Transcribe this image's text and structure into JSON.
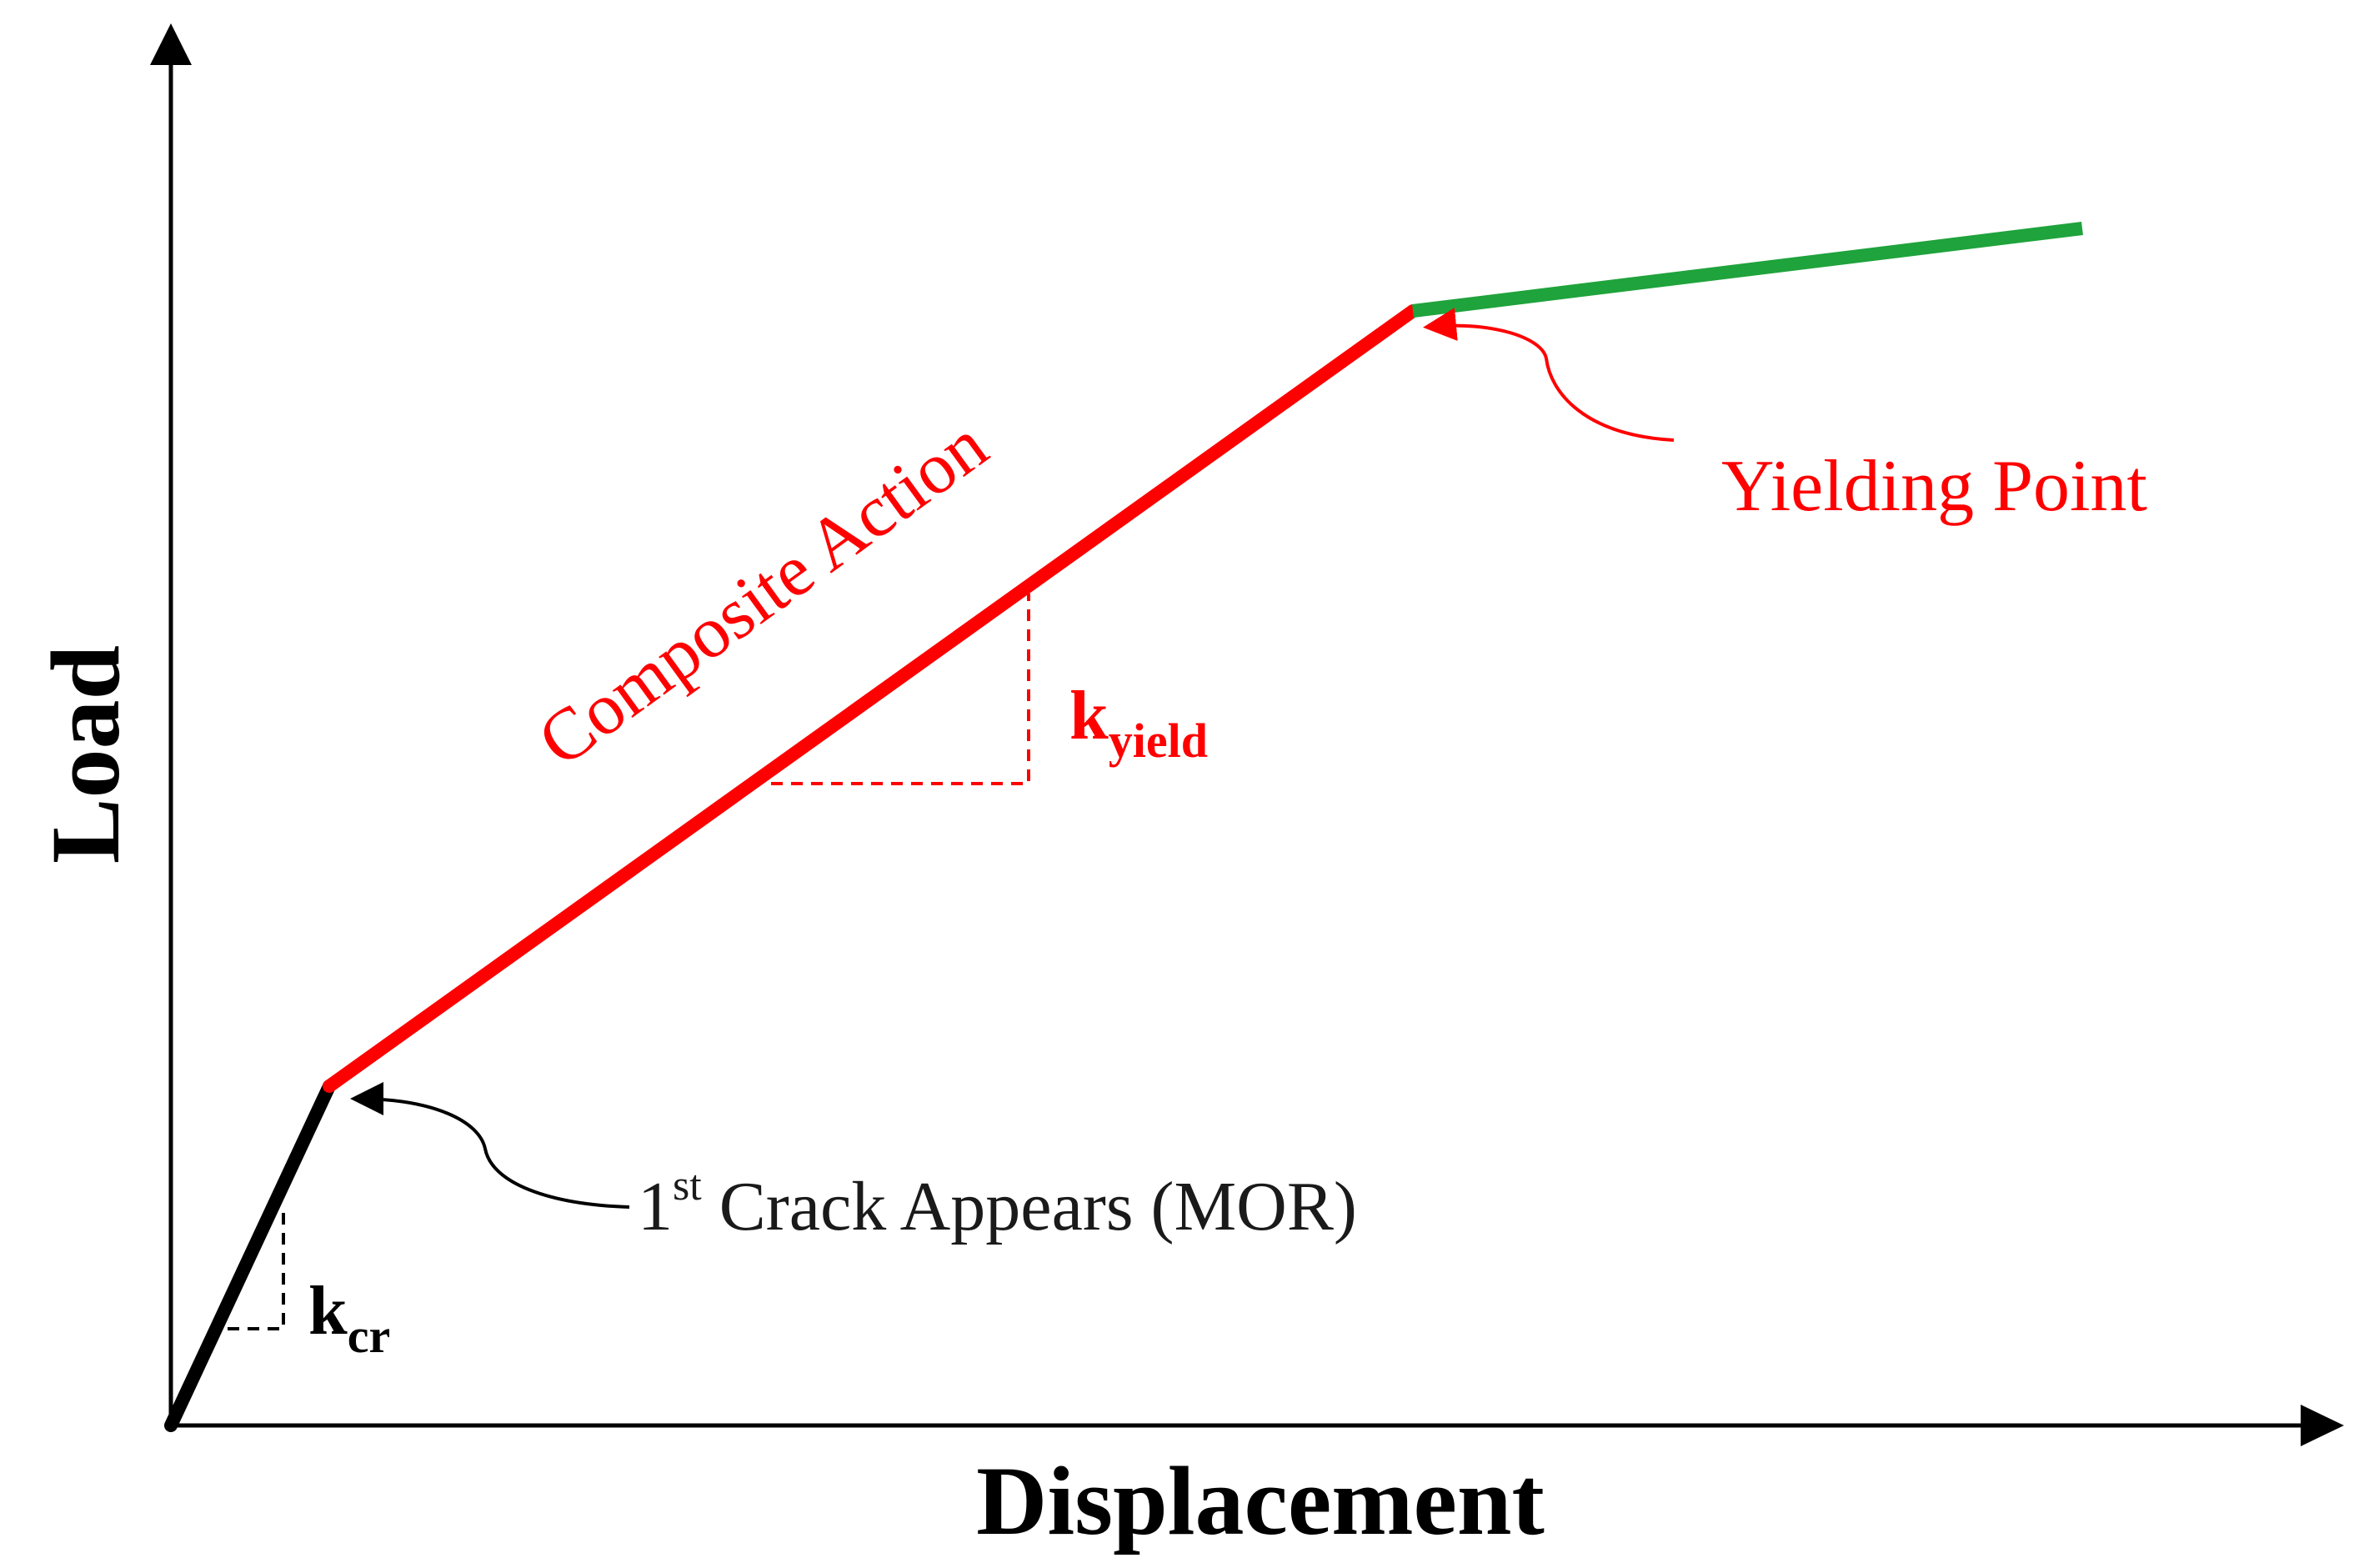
{
  "axes": {
    "x_label": "Displacement",
    "y_label": "Load"
  },
  "labels": {
    "composite_action": "Composite Action",
    "yielding_point": "Yielding Point",
    "first_crack_prefix": "1",
    "first_crack_superscript": "st",
    "first_crack_rest": " Crack Appears (MOR)",
    "k_cr_base": "k",
    "k_cr_sub": "cr",
    "k_yield_base": "k",
    "k_yield_sub": "yield"
  },
  "colors": {
    "axis": "#000000",
    "initial_segment": "#000000",
    "composite_segment": "#ff0000",
    "post_yield_segment": "#1fa33c",
    "red_text": "#ff0000"
  }
}
